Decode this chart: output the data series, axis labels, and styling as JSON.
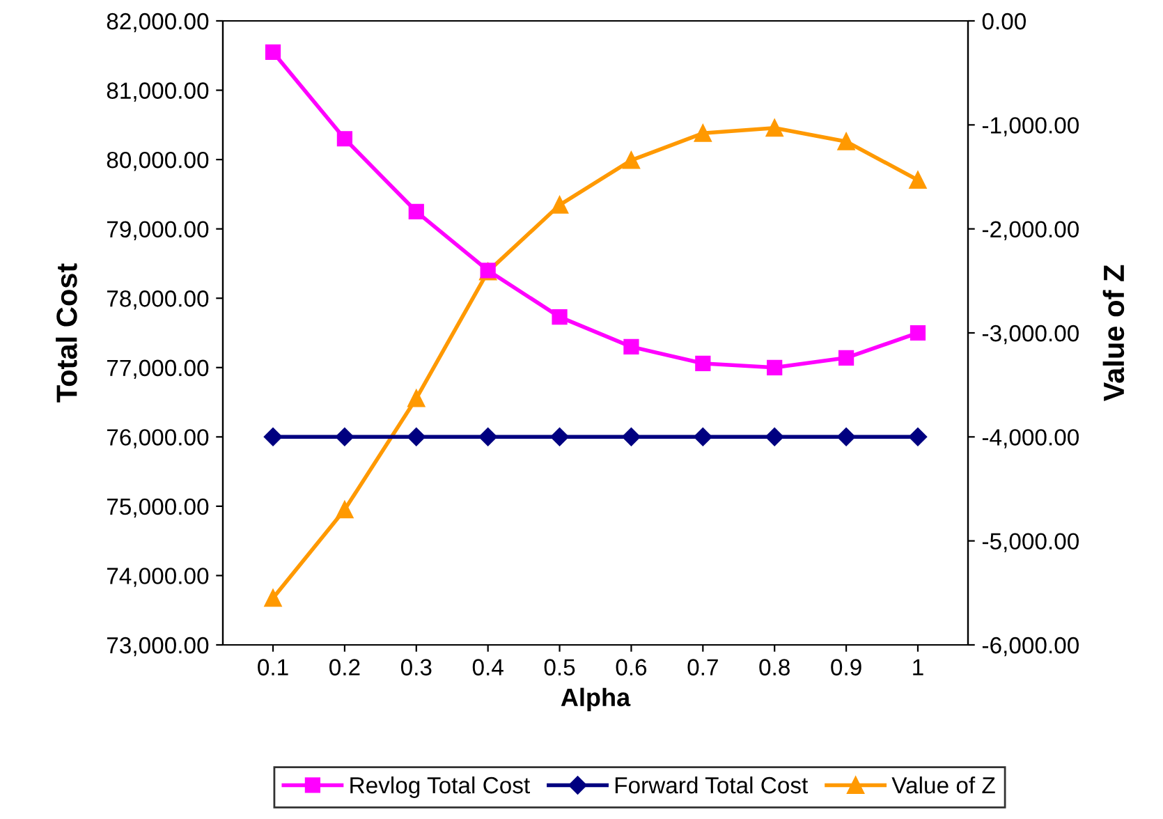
{
  "chart_data": {
    "type": "line",
    "xlabel": "Alpha",
    "ylabel": "Total Cost",
    "y2label": "Value of Z",
    "categories": [
      "0.1",
      "0.2",
      "0.3",
      "0.4",
      "0.5",
      "0.6",
      "0.7",
      "0.8",
      "0.9",
      "1"
    ],
    "series": [
      {
        "name": "Revlog Total Cost",
        "color": "#ff00ff",
        "marker": "square",
        "values": [
          81550,
          80300,
          79250,
          78400,
          77730,
          77300,
          77060,
          77000,
          77140,
          77500
        ]
      },
      {
        "name": "Forward Total Cost",
        "color": "#000080",
        "marker": "diamond",
        "values": [
          76000,
          76000,
          76000,
          76000,
          76000,
          76000,
          76000,
          76000,
          76000,
          76000
        ]
      },
      {
        "name": "Value of Z",
        "color": "#ff9900",
        "marker": "triangle",
        "axis": "y2",
        "values": [
          -5550,
          -4700,
          -3630,
          -2410,
          -1770,
          -1340,
          -1080,
          -1030,
          -1160,
          -1530
        ]
      }
    ],
    "ylim": [
      73000,
      82000
    ],
    "yticks": [
      {
        "value": 73000,
        "label": "73,000.00"
      },
      {
        "value": 74000,
        "label": "74,000.00"
      },
      {
        "value": 75000,
        "label": "75,000.00"
      },
      {
        "value": 76000,
        "label": "76,000.00"
      },
      {
        "value": 77000,
        "label": "77,000.00"
      },
      {
        "value": 78000,
        "label": "78,000.00"
      },
      {
        "value": 79000,
        "label": "79,000.00"
      },
      {
        "value": 80000,
        "label": "80,000.00"
      },
      {
        "value": 81000,
        "label": "81,000.00"
      },
      {
        "value": 82000,
        "label": "82,000.00"
      }
    ],
    "y2lim": [
      -6000,
      0
    ],
    "y2ticks": [
      {
        "value": -6000,
        "label": "-6,000.00"
      },
      {
        "value": -5000,
        "label": "-5,000.00"
      },
      {
        "value": -4000,
        "label": "-4,000.00"
      },
      {
        "value": -3000,
        "label": "-3,000.00"
      },
      {
        "value": -2000,
        "label": "-2,000.00"
      },
      {
        "value": -1000,
        "label": "-1,000.00"
      },
      {
        "value": 0,
        "label": "0.00"
      }
    ],
    "grid": false,
    "legend": "bottom",
    "line_style": "solid"
  }
}
